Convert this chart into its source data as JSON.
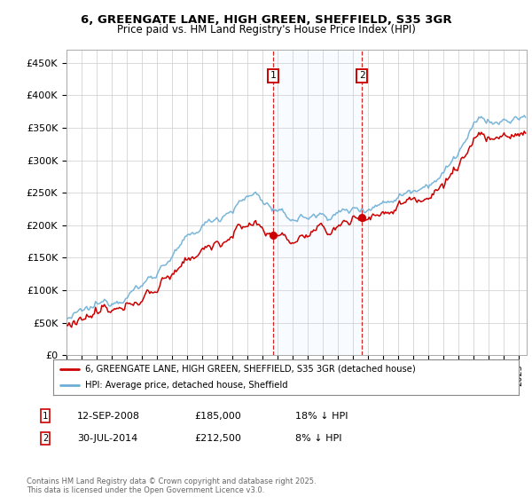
{
  "title_line1": "6, GREENGATE LANE, HIGH GREEN, SHEFFIELD, S35 3GR",
  "title_line2": "Price paid vs. HM Land Registry's House Price Index (HPI)",
  "yticks": [
    0,
    50000,
    100000,
    150000,
    200000,
    250000,
    300000,
    350000,
    400000,
    450000
  ],
  "ytick_labels": [
    "£0",
    "£50K",
    "£100K",
    "£150K",
    "£200K",
    "£250K",
    "£300K",
    "£350K",
    "£400K",
    "£450K"
  ],
  "ylim": [
    0,
    470000
  ],
  "xlim_start": 1995.0,
  "xlim_end": 2025.5,
  "hpi_color": "#6baed6",
  "price_color": "#cc0000",
  "sale1_date": 2008.71,
  "sale1_price": 185000,
  "sale2_date": 2014.58,
  "sale2_price": 212500,
  "legend_price": "6, GREENGATE LANE, HIGH GREEN, SHEFFIELD, S35 3GR (detached house)",
  "legend_hpi": "HPI: Average price, detached house, Sheffield",
  "footnote": "Contains HM Land Registry data © Crown copyright and database right 2025.\nThis data is licensed under the Open Government Licence v3.0.",
  "background_color": "#ffffff",
  "shade_color": "#ddeeff"
}
